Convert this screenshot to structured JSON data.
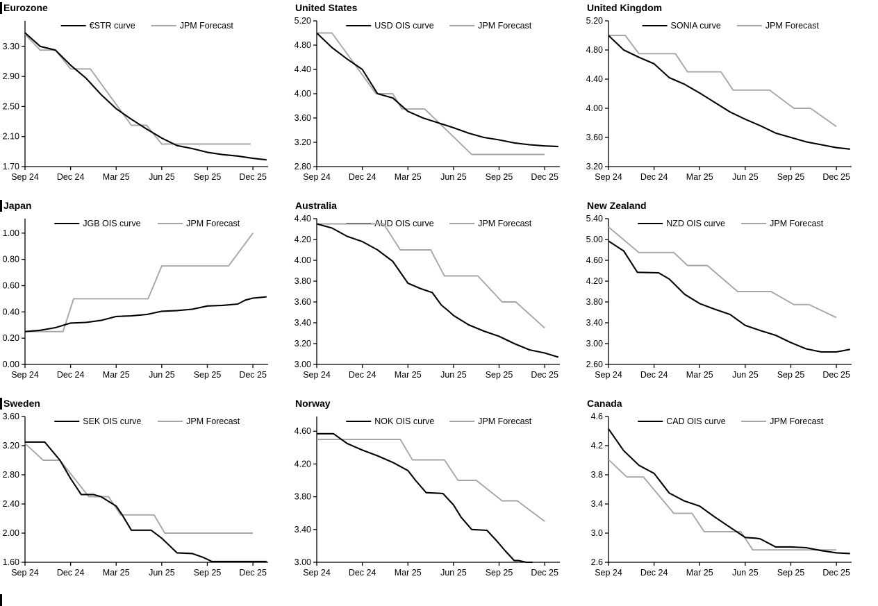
{
  "colors": {
    "ois_line": "#000000",
    "forecast_line": "#a6a6a6",
    "axis": "#000000",
    "text": "#000000"
  },
  "chart_data": [
    {
      "type": "line",
      "title": "Eurozone",
      "x_tick_labels": [
        "Sep 24",
        "Dec 24",
        "Mar 25",
        "Jun 25",
        "Sep 25",
        "Dec 25"
      ],
      "x_tick_positions": [
        0,
        3,
        6,
        9,
        12,
        15
      ],
      "xlim": [
        0,
        16
      ],
      "ylim": [
        1.7,
        3.64
      ],
      "yticks": [
        1.7,
        2.1,
        2.5,
        2.9,
        3.3
      ],
      "y_decimals": 2,
      "series": [
        {
          "name": "€STR curve",
          "color": "#000000",
          "width": 2.1,
          "x": [
            0,
            1,
            2,
            3,
            4,
            5,
            6,
            7,
            8,
            9,
            10,
            11,
            12,
            13,
            14,
            15,
            15.9
          ],
          "y": [
            3.48,
            3.3,
            3.25,
            3.05,
            2.88,
            2.66,
            2.47,
            2.33,
            2.2,
            2.08,
            1.98,
            1.94,
            1.89,
            1.86,
            1.84,
            1.81,
            1.79
          ]
        },
        {
          "name": "JPM Forecast",
          "color": "#a6a6a6",
          "width": 1.9,
          "x": [
            0,
            1,
            2,
            3,
            4.3,
            7,
            8,
            9,
            14.85
          ],
          "y": [
            3.46,
            3.25,
            3.25,
            3.0,
            3.0,
            2.25,
            2.25,
            2.0,
            2.0
          ]
        }
      ]
    },
    {
      "type": "line",
      "title": "United States",
      "x_tick_labels": [
        "Sep 24",
        "Dec 24",
        "Mar 25",
        "Jun 25",
        "Sep 25",
        "Dec 25"
      ],
      "x_tick_positions": [
        0,
        3,
        6,
        9,
        12,
        15
      ],
      "xlim": [
        0,
        16
      ],
      "ylim": [
        2.8,
        5.2
      ],
      "yticks": [
        2.8,
        3.2,
        3.6,
        4.0,
        4.4,
        4.8,
        5.2
      ],
      "y_decimals": 2,
      "series": [
        {
          "name": "USD OIS curve",
          "color": "#000000",
          "width": 2.1,
          "x": [
            0,
            1,
            2,
            3,
            4,
            5,
            6,
            7,
            8,
            9,
            10,
            11,
            12,
            13,
            14,
            15,
            15.9
          ],
          "y": [
            5.0,
            4.76,
            4.57,
            4.4,
            4.0,
            3.93,
            3.71,
            3.6,
            3.52,
            3.44,
            3.35,
            3.28,
            3.24,
            3.19,
            3.16,
            3.14,
            3.13
          ]
        },
        {
          "name": "JPM Forecast",
          "color": "#a6a6a6",
          "width": 1.9,
          "x": [
            0,
            1,
            3.9,
            5.0,
            5.6,
            7.1,
            10.2,
            15
          ],
          "y": [
            5.0,
            5.0,
            4.0,
            4.0,
            3.75,
            3.75,
            3.0,
            3.0
          ]
        }
      ]
    },
    {
      "type": "line",
      "title": "United Kingdom",
      "x_tick_labels": [
        "Sep 24",
        "Dec 24",
        "Mar 25",
        "Jun 25",
        "Sep 25",
        "Dec 25"
      ],
      "x_tick_positions": [
        0,
        3,
        6,
        9,
        12,
        15
      ],
      "xlim": [
        0,
        16
      ],
      "ylim": [
        3.2,
        5.2
      ],
      "yticks": [
        3.2,
        3.6,
        4.0,
        4.4,
        4.8,
        5.2
      ],
      "y_decimals": 2,
      "series": [
        {
          "name": "SONIA curve",
          "color": "#000000",
          "width": 2.1,
          "x": [
            0,
            1,
            2,
            3,
            4,
            5,
            6,
            7,
            8,
            9,
            10,
            11,
            12,
            13,
            14,
            15,
            15.9
          ],
          "y": [
            5.0,
            4.8,
            4.7,
            4.61,
            4.42,
            4.33,
            4.21,
            4.08,
            3.95,
            3.85,
            3.76,
            3.66,
            3.6,
            3.54,
            3.5,
            3.46,
            3.44
          ]
        },
        {
          "name": "JPM Forecast",
          "color": "#a6a6a6",
          "width": 1.9,
          "x": [
            0,
            1.1,
            2,
            4.4,
            5.2,
            7.4,
            8.2,
            10.6,
            12.2,
            13.3,
            15
          ],
          "y": [
            5.0,
            5.0,
            4.75,
            4.75,
            4.5,
            4.5,
            4.25,
            4.25,
            4.0,
            4.0,
            3.75
          ]
        }
      ]
    },
    {
      "type": "line",
      "title": "Japan",
      "x_tick_labels": [
        "Sep 24",
        "Dec 24",
        "Mar 25",
        "Jun 25",
        "Sep 25",
        "Dec 25"
      ],
      "x_tick_positions": [
        0,
        3,
        6,
        9,
        12,
        15
      ],
      "xlim": [
        0,
        16
      ],
      "ylim": [
        0.0,
        1.11
      ],
      "yticks": [
        0.0,
        0.2,
        0.4,
        0.6,
        0.8,
        1.0
      ],
      "y_decimals": 2,
      "series": [
        {
          "name": "JGB OIS curve",
          "color": "#000000",
          "width": 2.1,
          "x": [
            0,
            1,
            2,
            3,
            4,
            5,
            6,
            7,
            8,
            9,
            10,
            11,
            12,
            13,
            14,
            14.5,
            15,
            15.9
          ],
          "y": [
            0.25,
            0.26,
            0.28,
            0.315,
            0.32,
            0.335,
            0.365,
            0.37,
            0.38,
            0.405,
            0.41,
            0.42,
            0.445,
            0.45,
            0.46,
            0.49,
            0.505,
            0.515
          ]
        },
        {
          "name": "JPM Forecast",
          "color": "#a6a6a6",
          "width": 1.9,
          "x": [
            0,
            2.5,
            3.2,
            8.1,
            9.0,
            13.4,
            15
          ],
          "y": [
            0.25,
            0.25,
            0.5,
            0.5,
            0.75,
            0.75,
            1.0
          ]
        }
      ]
    },
    {
      "type": "line",
      "title": "Australia",
      "x_tick_labels": [
        "Sep 24",
        "Dec 24",
        "Mar 25",
        "Jun 25",
        "Sep 25",
        "Dec 25"
      ],
      "x_tick_positions": [
        0,
        3,
        6,
        9,
        12,
        15
      ],
      "xlim": [
        0,
        16
      ],
      "ylim": [
        3.0,
        4.4
      ],
      "yticks": [
        3.0,
        3.2,
        3.4,
        3.6,
        3.8,
        4.0,
        4.2,
        4.4
      ],
      "y_decimals": 2,
      "series": [
        {
          "name": "AUD OIS curve",
          "color": "#000000",
          "width": 2.1,
          "x": [
            0,
            1,
            2,
            3,
            4,
            5,
            6,
            6.8,
            7.6,
            8.2,
            8.7,
            9,
            10,
            11,
            12,
            13,
            14,
            15,
            15.9
          ],
          "y": [
            4.35,
            4.31,
            4.23,
            4.18,
            4.1,
            3.99,
            3.78,
            3.73,
            3.69,
            3.57,
            3.51,
            3.47,
            3.38,
            3.32,
            3.27,
            3.2,
            3.14,
            3.11,
            3.07
          ]
        },
        {
          "name": "JPM Forecast",
          "color": "#a6a6a6",
          "width": 1.9,
          "x": [
            0,
            4.4,
            5.5,
            7.5,
            8.4,
            10.6,
            12.2,
            13.1,
            15
          ],
          "y": [
            4.35,
            4.35,
            4.1,
            4.1,
            3.85,
            3.85,
            3.6,
            3.6,
            3.35
          ]
        }
      ]
    },
    {
      "type": "line",
      "title": "New Zealand",
      "x_tick_labels": [
        "Sep 24",
        "Dec 24",
        "Mar 25",
        "Jun 25",
        "Sep 25",
        "Dec 25"
      ],
      "x_tick_positions": [
        0,
        3,
        6,
        9,
        12,
        15
      ],
      "xlim": [
        0,
        16
      ],
      "ylim": [
        2.6,
        5.4
      ],
      "yticks": [
        2.6,
        3.0,
        3.4,
        3.8,
        4.2,
        4.6,
        5.0,
        5.4
      ],
      "y_decimals": 2,
      "series": [
        {
          "name": "NZD OIS curve",
          "color": "#000000",
          "width": 2.1,
          "x": [
            0,
            1,
            1.9,
            3.3,
            4,
            5,
            6,
            7,
            8,
            9,
            10,
            11,
            12,
            13,
            14,
            15,
            15.9
          ],
          "y": [
            4.97,
            4.78,
            4.37,
            4.36,
            4.24,
            3.95,
            3.77,
            3.66,
            3.56,
            3.35,
            3.25,
            3.16,
            3.02,
            2.9,
            2.84,
            2.84,
            2.89
          ]
        },
        {
          "name": "JPM Forecast",
          "color": "#a6a6a6",
          "width": 1.9,
          "x": [
            0,
            2,
            4.3,
            5.2,
            6.5,
            8.5,
            10.7,
            12.2,
            13.2,
            15
          ],
          "y": [
            5.24,
            4.75,
            4.75,
            4.5,
            4.5,
            4.0,
            4.0,
            3.75,
            3.75,
            3.5
          ]
        }
      ]
    },
    {
      "type": "line",
      "title": "Sweden",
      "x_tick_labels": [
        "Sep 24",
        "Dec 24",
        "Mar 25",
        "Jun 25",
        "Sep 25",
        "Dec 25"
      ],
      "x_tick_positions": [
        0,
        3,
        6,
        9,
        12,
        15
      ],
      "xlim": [
        0,
        16
      ],
      "ylim": [
        1.6,
        3.6
      ],
      "yticks": [
        1.6,
        2.0,
        2.4,
        2.8,
        3.2,
        3.6
      ],
      "y_decimals": 2,
      "series": [
        {
          "name": "SEK OIS curve",
          "color": "#000000",
          "width": 2.1,
          "x": [
            0,
            1.3,
            2.3,
            3,
            3.7,
            4.5,
            5,
            6,
            6.4,
            7,
            8.3,
            9,
            10,
            11,
            11.7,
            12.3,
            15,
            15.9
          ],
          "y": [
            3.25,
            3.25,
            3.0,
            2.75,
            2.53,
            2.53,
            2.5,
            2.37,
            2.25,
            2.04,
            2.04,
            1.93,
            1.73,
            1.72,
            1.67,
            1.61,
            1.61,
            1.61
          ]
        },
        {
          "name": "JPM Forecast",
          "color": "#a6a6a6",
          "width": 1.9,
          "x": [
            0,
            1.2,
            2.3,
            4.2,
            5.5,
            6.3,
            8.5,
            9.2,
            15
          ],
          "y": [
            3.23,
            3.0,
            3.0,
            2.5,
            2.5,
            2.25,
            2.25,
            2.0,
            2.0
          ]
        }
      ]
    },
    {
      "type": "line",
      "title": "Norway",
      "x_tick_labels": [
        "Sep 24",
        "Dec 24",
        "Mar 25",
        "Jun 25",
        "Sep 25",
        "Dec 25"
      ],
      "x_tick_positions": [
        0,
        3,
        6,
        9,
        12,
        15
      ],
      "xlim": [
        0,
        16
      ],
      "ylim": [
        3.0,
        4.78
      ],
      "yticks": [
        3.0,
        3.4,
        3.8,
        4.2,
        4.6
      ],
      "y_decimals": 2,
      "series": [
        {
          "name": "NOK OIS curve",
          "color": "#000000",
          "width": 2.1,
          "x": [
            0,
            1.1,
            2,
            3,
            4,
            5,
            6,
            6.5,
            7.2,
            8.3,
            9,
            9.5,
            10.2,
            11.2,
            11.8,
            12.4,
            13,
            13.3,
            13.8,
            14.2
          ],
          "y": [
            4.57,
            4.57,
            4.45,
            4.37,
            4.3,
            4.22,
            4.12,
            4.0,
            3.85,
            3.84,
            3.7,
            3.55,
            3.4,
            3.39,
            3.27,
            3.14,
            3.02,
            3.02,
            3.0,
            3.0
          ]
        },
        {
          "name": "JPM Forecast",
          "color": "#a6a6a6",
          "width": 1.9,
          "x": [
            0,
            5.5,
            6.3,
            8.4,
            9.3,
            10.5,
            12.2,
            13.2,
            15
          ],
          "y": [
            4.5,
            4.5,
            4.25,
            4.25,
            4.0,
            4.0,
            3.75,
            3.75,
            3.5
          ]
        }
      ]
    },
    {
      "type": "line",
      "title": "Canada",
      "x_tick_labels": [
        "Sep 24",
        "Dec 24",
        "Mar 25",
        "Jun 25",
        "Sep 25",
        "Dec 25"
      ],
      "x_tick_positions": [
        0,
        3,
        6,
        9,
        12,
        15
      ],
      "xlim": [
        0,
        16
      ],
      "ylim": [
        2.6,
        4.6
      ],
      "yticks": [
        2.6,
        3.0,
        3.4,
        3.8,
        4.2,
        4.6
      ],
      "y_decimals": 1,
      "series": [
        {
          "name": "CAD OIS curve",
          "color": "#000000",
          "width": 2.1,
          "x": [
            0,
            1,
            2,
            3,
            4,
            5,
            6,
            7,
            8,
            9,
            9.7,
            10,
            11,
            12,
            13,
            14,
            15,
            15.9
          ],
          "y": [
            4.43,
            4.13,
            3.93,
            3.82,
            3.55,
            3.44,
            3.37,
            3.22,
            3.08,
            2.94,
            2.93,
            2.92,
            2.81,
            2.81,
            2.8,
            2.76,
            2.73,
            2.72
          ]
        },
        {
          "name": "JPM Forecast",
          "color": "#a6a6a6",
          "width": 1.9,
          "x": [
            0,
            1.2,
            2.3,
            4.3,
            5.5,
            6.3,
            8.7,
            9.5,
            15
          ],
          "y": [
            4.01,
            3.77,
            3.77,
            3.27,
            3.27,
            3.02,
            3.02,
            2.77,
            2.77
          ]
        }
      ]
    }
  ]
}
